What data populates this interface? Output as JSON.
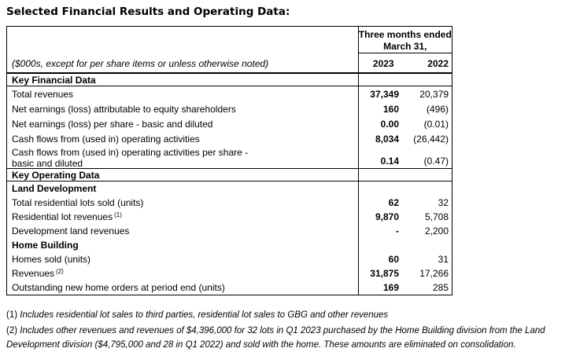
{
  "title": "Selected Financial Results and Operating Data:",
  "table": {
    "period_header_line1": "Three months ended",
    "period_header_line2": "March 31,",
    "unit_note": "($000s, except for per share items or unless otherwise noted)",
    "col_headers": [
      "2023",
      "2022"
    ],
    "rows": [
      {
        "type": "section",
        "label": "Key Financial Data"
      },
      {
        "type": "data",
        "label": "Total revenues",
        "v2023": "37,349",
        "v2022": "20,379"
      },
      {
        "type": "data",
        "label": "Net earnings (loss) attributable to equity shareholders",
        "v2023": "160",
        "v2022": "(496)"
      },
      {
        "type": "data",
        "label": "Net earnings (loss) per share - basic and diluted",
        "v2023": "0.00",
        "v2022": "(0.01)"
      },
      {
        "type": "data",
        "label": "Cash flows from (used in) operating activities",
        "v2023": "8,034",
        "v2022": "(26,442)"
      },
      {
        "type": "data2",
        "label_line1": "Cash flows from (used in) operating activities per share -",
        "label_line2": "basic and diluted",
        "v2023": "0.14",
        "v2022": "(0.47)"
      },
      {
        "type": "section",
        "label": "Key Operating Data"
      },
      {
        "type": "subsection",
        "label": "Land Development"
      },
      {
        "type": "data",
        "label": "Total residential lots sold (units)",
        "v2023": "62",
        "v2022": "32"
      },
      {
        "type": "data",
        "label": "Residential lot revenues",
        "sup": "(1)",
        "v2023": "9,870",
        "v2022": "5,708"
      },
      {
        "type": "data",
        "label": "Development land revenues",
        "v2023": "-",
        "v2022": "2,200"
      },
      {
        "type": "subsection",
        "label": "Home Building"
      },
      {
        "type": "data",
        "label": "Homes sold (units)",
        "v2023": "60",
        "v2022": "31"
      },
      {
        "type": "data",
        "label": "Revenues",
        "sup": "(2)",
        "v2023": "31,875",
        "v2022": "17,266"
      },
      {
        "type": "data",
        "label": "Outstanding new home orders at period end (units)",
        "v2023": "169",
        "v2022": "285"
      }
    ]
  },
  "footnotes": [
    {
      "marker": "(1)",
      "text": "Includes residential lot sales to third parties, residential lot sales to GBG and other revenues"
    },
    {
      "marker": "(2)",
      "text": "Includes other revenues and revenues of $4,396,000 for 32 lots in Q1 2023 purchased by the Home Building division from the Land Development division ($4,795,000 and 28 in Q1 2022) and sold with the home. These amounts are eliminated on consolidation."
    }
  ]
}
